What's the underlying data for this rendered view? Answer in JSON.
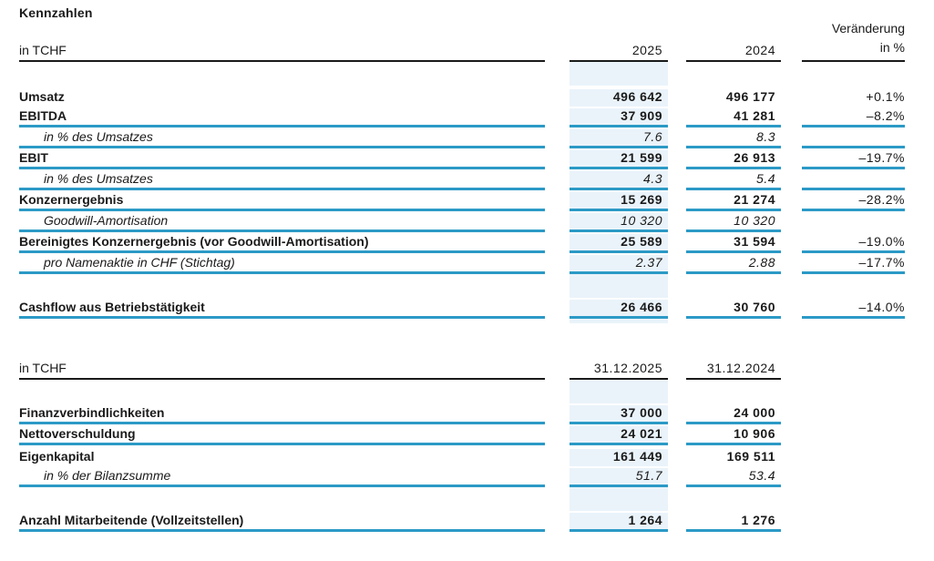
{
  "page": {
    "title": "Kennzahlen"
  },
  "colors": {
    "accent_line": "#2b9ac6",
    "highlight_bg": "#eaf3fa",
    "header_line": "#1a1a1a",
    "text_color": "#1a1a1a"
  },
  "sections": [
    {
      "name": "kennzahlen-erfolgsrechnung",
      "header": {
        "unit_label": "in TCHF",
        "col1": "2025",
        "col2": "2024",
        "col3_line1": "Veränderung",
        "col3_line2": "in %"
      },
      "rows": [
        {
          "spacer": 26
        },
        {
          "label": "Umsatz",
          "style": "bold",
          "v1": "496 642",
          "v2": "496 177",
          "chg": "+0.1%",
          "underline": false,
          "chg_underline": false
        },
        {
          "label": "EBITDA",
          "style": "bold",
          "v1": "37 909",
          "v2": "41 281",
          "chg": "–8.2%",
          "underline": true,
          "chg_underline": true
        },
        {
          "label": "in % des Umsatzes",
          "style": "italic",
          "v1": "7.6",
          "v2": "8.3",
          "chg": "",
          "underline": true,
          "chg_underline": true
        },
        {
          "label": "EBIT",
          "style": "bold",
          "v1": "21 599",
          "v2": "26 913",
          "chg": "–19.7%",
          "underline": true,
          "chg_underline": true
        },
        {
          "label": "in % des Umsatzes",
          "style": "italic",
          "v1": "4.3",
          "v2": "5.4",
          "chg": "",
          "underline": true,
          "chg_underline": true
        },
        {
          "label": "Konzernergebnis",
          "style": "bold",
          "v1": "15 269",
          "v2": "21 274",
          "chg": "–28.2%",
          "underline": true,
          "chg_underline": true
        },
        {
          "label": "Goodwill-Amortisation",
          "style": "italic",
          "v1": "10 320",
          "v2": "10 320",
          "chg": "",
          "underline": true,
          "chg_underline": false
        },
        {
          "label": "Bereinigtes Konzernergebnis (vor Goodwill-Amortisation)",
          "style": "bold",
          "v1": "25 589",
          "v2": "31 594",
          "chg": "–19.0%",
          "underline": true,
          "chg_underline": true
        },
        {
          "label": "pro Namenaktie in CHF (Stichtag)",
          "style": "italic",
          "v1": "2.37",
          "v2": "2.88",
          "chg": "–17.7%",
          "underline": true,
          "chg_underline": true
        },
        {
          "spacer": 26
        },
        {
          "label": "Cashflow aus Betriebstätigkeit",
          "style": "bold",
          "v1": "26 466",
          "v2": "30 760",
          "chg": "–14.0%",
          "underline": true,
          "chg_underline": true
        },
        {
          "spacer": 5
        }
      ]
    },
    {
      "name": "kennzahlen-bilanz",
      "header": {
        "unit_label": "in TCHF",
        "col1": "31.12.2025",
        "col2": "31.12.2024"
      },
      "rows": [
        {
          "spacer": 26
        },
        {
          "label": "Finanzverbindlichkeiten",
          "style": "bold",
          "v1": "37 000",
          "v2": "24 000",
          "chg": "",
          "underline": true,
          "chg_underline": false
        },
        {
          "label": "Nettoverschuldung",
          "style": "bold",
          "v1": "24 021",
          "v2": "10 906",
          "chg": "",
          "underline": true,
          "chg_underline": false
        },
        {
          "label": "Eigenkapital",
          "style": "bold",
          "v1": "161 449",
          "v2": "169 511",
          "chg": "",
          "underline": false,
          "chg_underline": false
        },
        {
          "label": "in % der Bilanzsumme",
          "style": "italic",
          "v1": "51.7",
          "v2": "53.4",
          "chg": "",
          "underline": true,
          "chg_underline": false
        },
        {
          "spacer": 26
        },
        {
          "label": "Anzahl Mitarbeitende (Vollzeitstellen)",
          "style": "bold",
          "v1": "1 264",
          "v2": "1 276",
          "chg": "",
          "underline": true,
          "chg_underline": false
        }
      ]
    }
  ]
}
